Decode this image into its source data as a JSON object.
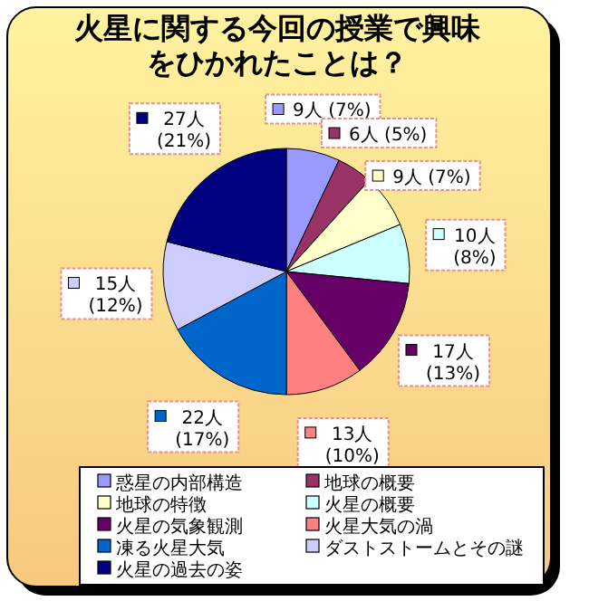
{
  "chart_data": {
    "type": "pie",
    "title": "火星に関する今回の授業で興味をひかれたことは？",
    "categories": [
      "惑星の内部構造",
      "地球の概要",
      "地球の特徴",
      "火星の概要",
      "火星の気象観測",
      "火星大気の渦",
      "凍る火星大気",
      "ダストストームとその謎",
      "火星の過去の姿"
    ],
    "values": [
      9,
      6,
      9,
      10,
      17,
      13,
      22,
      15,
      27
    ],
    "value_labels": [
      "9人 (7%)",
      "6人 (5%)",
      "9人 (7%)",
      "10人 (8%)",
      "17人 (13%)",
      "13人 (10%)",
      "22人 (17%)",
      "15人 (12%)",
      "27人 (21%)"
    ],
    "colors": [
      "#9999ff",
      "#993366",
      "#ffffcc",
      "#ccffff",
      "#660066",
      "#ff8080",
      "#0066cc",
      "#ccccff",
      "#000080"
    ],
    "legend": "bottom"
  }
}
